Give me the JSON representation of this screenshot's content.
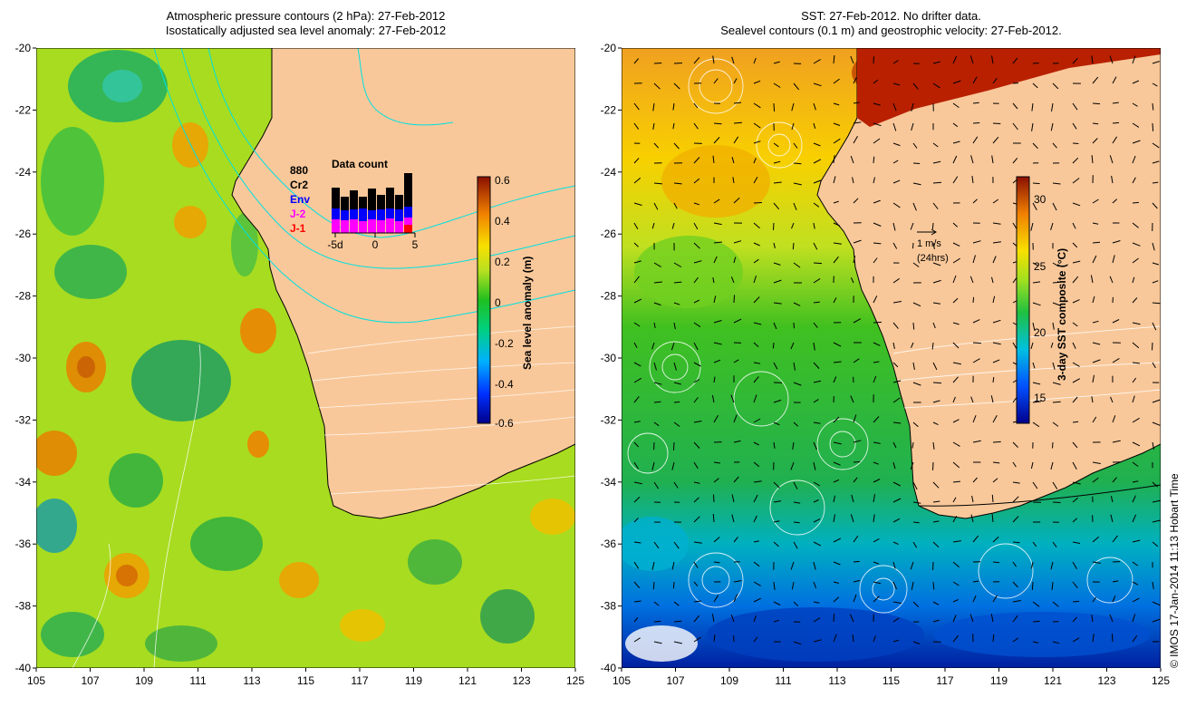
{
  "left_panel": {
    "title_line1": "Atmospheric pressure contours (2 hPa): 27-Feb-2012",
    "title_line2": "Isostatically adjusted sea level anomaly: 27-Feb-2012",
    "colorbar": {
      "label": "Sea level anomaly (m)",
      "ticks": [
        "0.6",
        "0.4",
        "0.2",
        "0",
        "-0.2",
        "-0.4",
        "-0.6"
      ]
    },
    "data_count": {
      "title": "Data count",
      "labels": [
        {
          "text": "880",
          "color": "#000000"
        },
        {
          "text": "Cr2",
          "color": "#000000"
        },
        {
          "text": "Env",
          "color": "#0000ff"
        },
        {
          "text": "J-2",
          "color": "#ff00ff"
        },
        {
          "text": "J-1",
          "color": "#ff0000"
        }
      ],
      "axis_ticks": [
        "-5d",
        "0",
        "5"
      ]
    }
  },
  "right_panel": {
    "title_line1": "SST: 27-Feb-2012. No drifter data.",
    "title_line2": "Sealevel contours (0.1 m) and geostrophic velocity: 27-Feb-2012.",
    "colorbar": {
      "label": "3-day SST composite (°C)",
      "ticks": [
        "30",
        "25",
        "20",
        "15"
      ]
    },
    "velocity_legend": {
      "line1": "1 m/s",
      "line2": "(24hrs)"
    }
  },
  "axes": {
    "x_ticks": [
      "105",
      "107",
      "109",
      "111",
      "113",
      "115",
      "117",
      "119",
      "121",
      "123",
      "125"
    ],
    "y_ticks": [
      "-20",
      "-22",
      "-24",
      "-26",
      "-28",
      "-30",
      "-32",
      "-34",
      "-36",
      "-38",
      "-40"
    ]
  },
  "credit": "© IMOS 17-Jan-2014 11:13 Hobart Time",
  "colors": {
    "land": "#f9c89a",
    "coast": "#000000",
    "slcontour": "#ffffff",
    "pressure": "#00e0e0"
  }
}
